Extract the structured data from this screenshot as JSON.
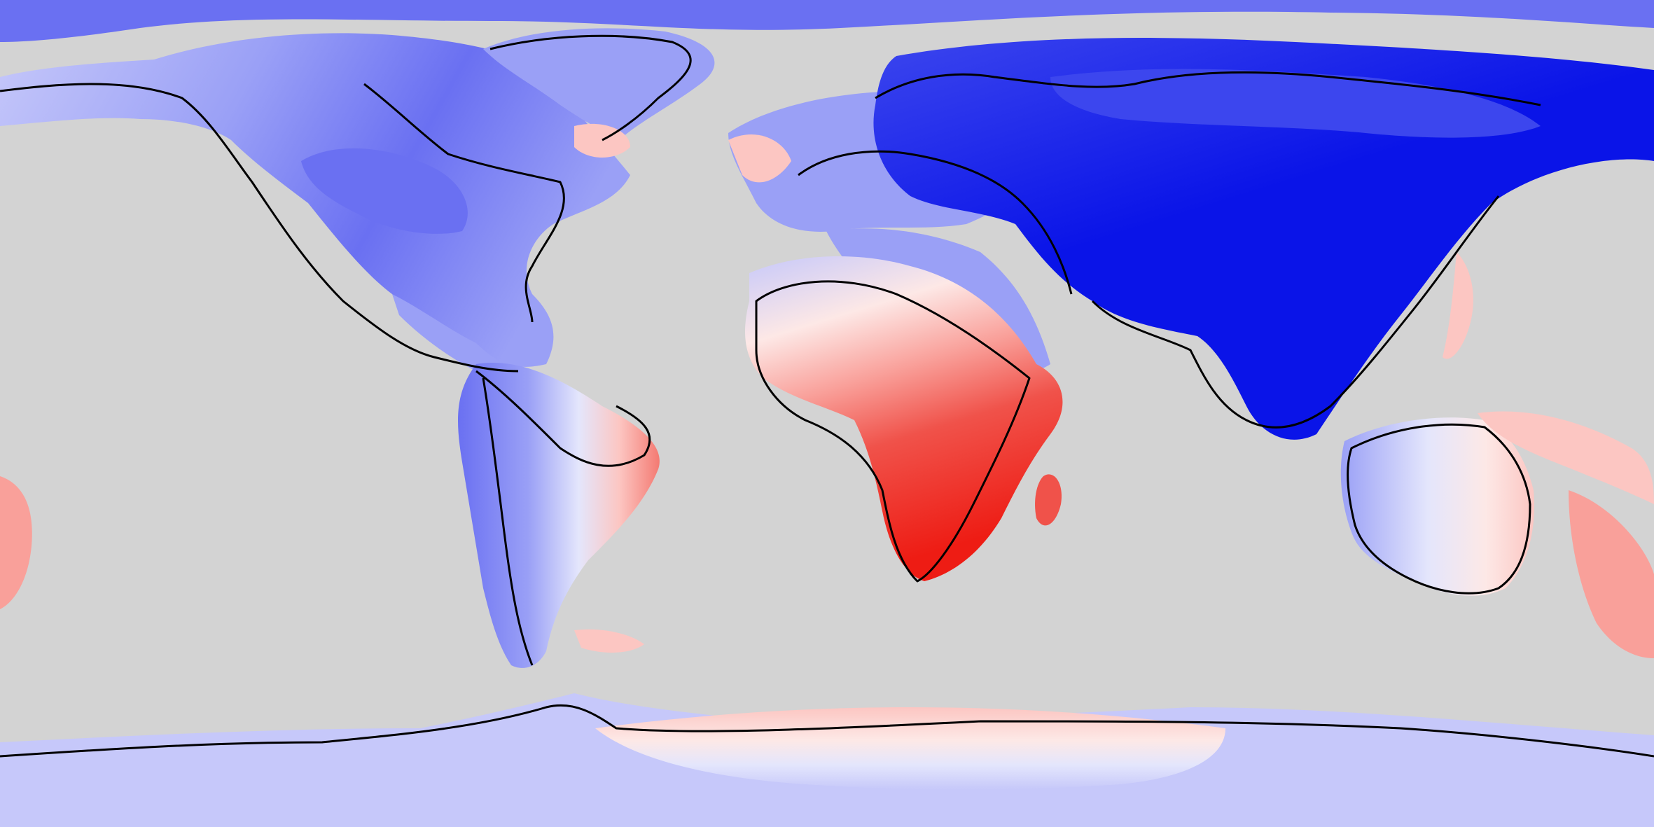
{
  "map": {
    "projection": "equirectangular",
    "ocean_color": "#d3d3d3",
    "coastline_color": "#000000",
    "palette": {
      "strong_negative": "#0a14e8",
      "negative_2": "#3c46ee",
      "negative_3": "#6a70f2",
      "negative_4": "#9aa0f6",
      "negative_5": "#c6c8fa",
      "neutral_low": "#e4e6fc",
      "neutral_high": "#fde8e6",
      "positive_5": "#fcc6c2",
      "positive_4": "#f9a09a",
      "positive_3": "#f47a72",
      "positive_2": "#f0524a",
      "strong_positive": "#ee1c14"
    },
    "regions": [
      {
        "name": "north-america",
        "dominant": "negative"
      },
      {
        "name": "greenland",
        "dominant": "negative"
      },
      {
        "name": "south-america",
        "dominant": "negative"
      },
      {
        "name": "europe",
        "dominant": "negative"
      },
      {
        "name": "africa",
        "dominant": "positive"
      },
      {
        "name": "asia",
        "dominant": "strong_negative"
      },
      {
        "name": "australia",
        "dominant": "mixed"
      },
      {
        "name": "antarctica",
        "dominant": "mixed"
      },
      {
        "name": "madagascar",
        "dominant": "positive"
      },
      {
        "name": "new-zealand",
        "dominant": "positive"
      }
    ]
  }
}
